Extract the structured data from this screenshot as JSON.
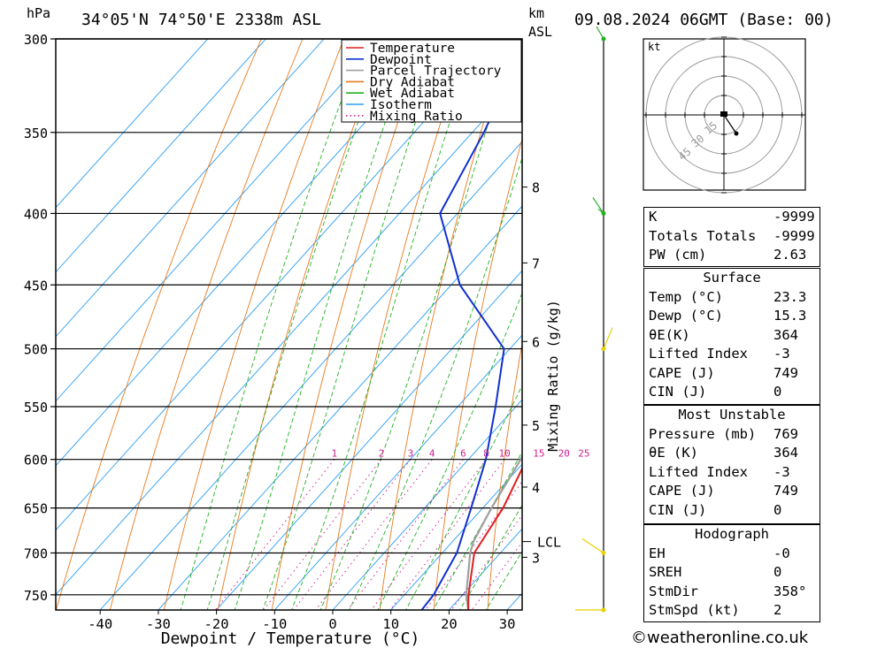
{
  "header": {
    "location": "34°05'N  74°50'E  2338m  ASL",
    "datetime": "09.08.2024  06GMT  (Base: 00)",
    "pressure_unit": "hPa",
    "height_unit": "km",
    "height_ref": "ASL"
  },
  "chart_data": {
    "type": "line",
    "title": "Skew-T log-P diagram",
    "xlabel": "Dewpoint / Temperature (°C)",
    "ylabel": "hPa",
    "right_axis_label": "Mixing Ratio (g/kg)",
    "x_ticks": [
      -40,
      -30,
      -20,
      -10,
      0,
      10,
      20,
      30
    ],
    "pressure_levels": [
      300,
      350,
      400,
      450,
      500,
      550,
      600,
      650,
      700,
      750
    ],
    "km_labels": [
      {
        "km": "8",
        "p": 383
      },
      {
        "km": "7",
        "p": 434
      },
      {
        "km": "6",
        "p": 494
      },
      {
        "km": "5",
        "p": 567
      },
      {
        "km": "4",
        "p": 628
      },
      {
        "km": "3",
        "p": 705
      }
    ],
    "lcl": {
      "label": "LCL",
      "p": 687
    },
    "mixing_ratio_labels": [
      "1",
      "2",
      "3",
      "4",
      "6",
      "8",
      "10",
      "15",
      "20",
      "25"
    ],
    "legend": [
      "Temperature",
      "Dewpoint",
      "Parcel Trajectory",
      "Dry Adiabat",
      "Wet Adiabat",
      "Isotherm",
      "Mixing Ratio"
    ],
    "series": [
      {
        "name": "Temperature",
        "color": "#e02020",
        "points": [
          [
            769,
            23.3
          ],
          [
            750,
            21
          ],
          [
            700,
            15.5
          ],
          [
            650,
            13.5
          ],
          [
            600,
            10
          ],
          [
            550,
            6
          ],
          [
            500,
            1
          ],
          [
            450,
            -5
          ],
          [
            400,
            -12
          ],
          [
            370,
            -19.5
          ],
          [
            345,
            -26
          ]
        ]
      },
      {
        "name": "Dewpoint",
        "color": "#1030d0",
        "points": [
          [
            769,
            15.3
          ],
          [
            750,
            15.0
          ],
          [
            700,
            12.5
          ],
          [
            650,
            8
          ],
          [
            600,
            3
          ],
          [
            550,
            -3.5
          ],
          [
            500,
            -11
          ],
          [
            450,
            -28.5
          ],
          [
            400,
            -43
          ],
          [
            350,
            -48
          ],
          [
            300,
            -55
          ]
        ]
      },
      {
        "name": "Parcel Trajectory",
        "color": "#a0a0a0",
        "points": [
          [
            769,
            23.3
          ],
          [
            750,
            20.6
          ],
          [
            700,
            14.8
          ],
          [
            687,
            13.6
          ],
          [
            650,
            11.5
          ],
          [
            600,
            9
          ],
          [
            550,
            5.5
          ],
          [
            500,
            0.5
          ],
          [
            450,
            -5.5
          ],
          [
            400,
            -12.5
          ],
          [
            350,
            -21
          ]
        ]
      }
    ]
  },
  "hodograph": {
    "unit": "kt",
    "rings": [
      "15",
      "30",
      "45"
    ]
  },
  "indices": {
    "k_label": "K",
    "k_value": "-9999",
    "tt_label": "Totals Totals",
    "tt_value": "-9999",
    "pw_label": "PW (cm)",
    "pw_value": "2.63"
  },
  "surface": {
    "title": "Surface",
    "temp_label": "Temp (°C)",
    "temp_value": "23.3",
    "dewp_label": "Dewp (°C)",
    "dewp_value": "15.3",
    "thetae_label": "θE(K)",
    "thetae_value": "364",
    "li_label": "Lifted Index",
    "li_value": "-3",
    "cape_label": "CAPE (J)",
    "cape_value": "749",
    "cin_label": "CIN (J)",
    "cin_value": "0"
  },
  "most_unstable": {
    "title": "Most Unstable",
    "pressure_label": "Pressure (mb)",
    "pressure_value": "769",
    "thetae_label": "θE (K)",
    "thetae_value": "364",
    "li_label": "Lifted Index",
    "li_value": "-3",
    "cape_label": "CAPE (J)",
    "cape_value": "749",
    "cin_label": "CIN (J)",
    "cin_value": "0"
  },
  "hodograph_stats": {
    "title": "Hodograph",
    "eh_label": "EH",
    "eh_value": "-0",
    "sreh_label": "SREH",
    "sreh_value": "0",
    "stmdir_label": "StmDir",
    "stmdir_value": "358°",
    "stmspd_label": "StmSpd (kt)",
    "stmspd_value": "2"
  },
  "footer": {
    "credit": "©weatheronline.co.uk"
  }
}
